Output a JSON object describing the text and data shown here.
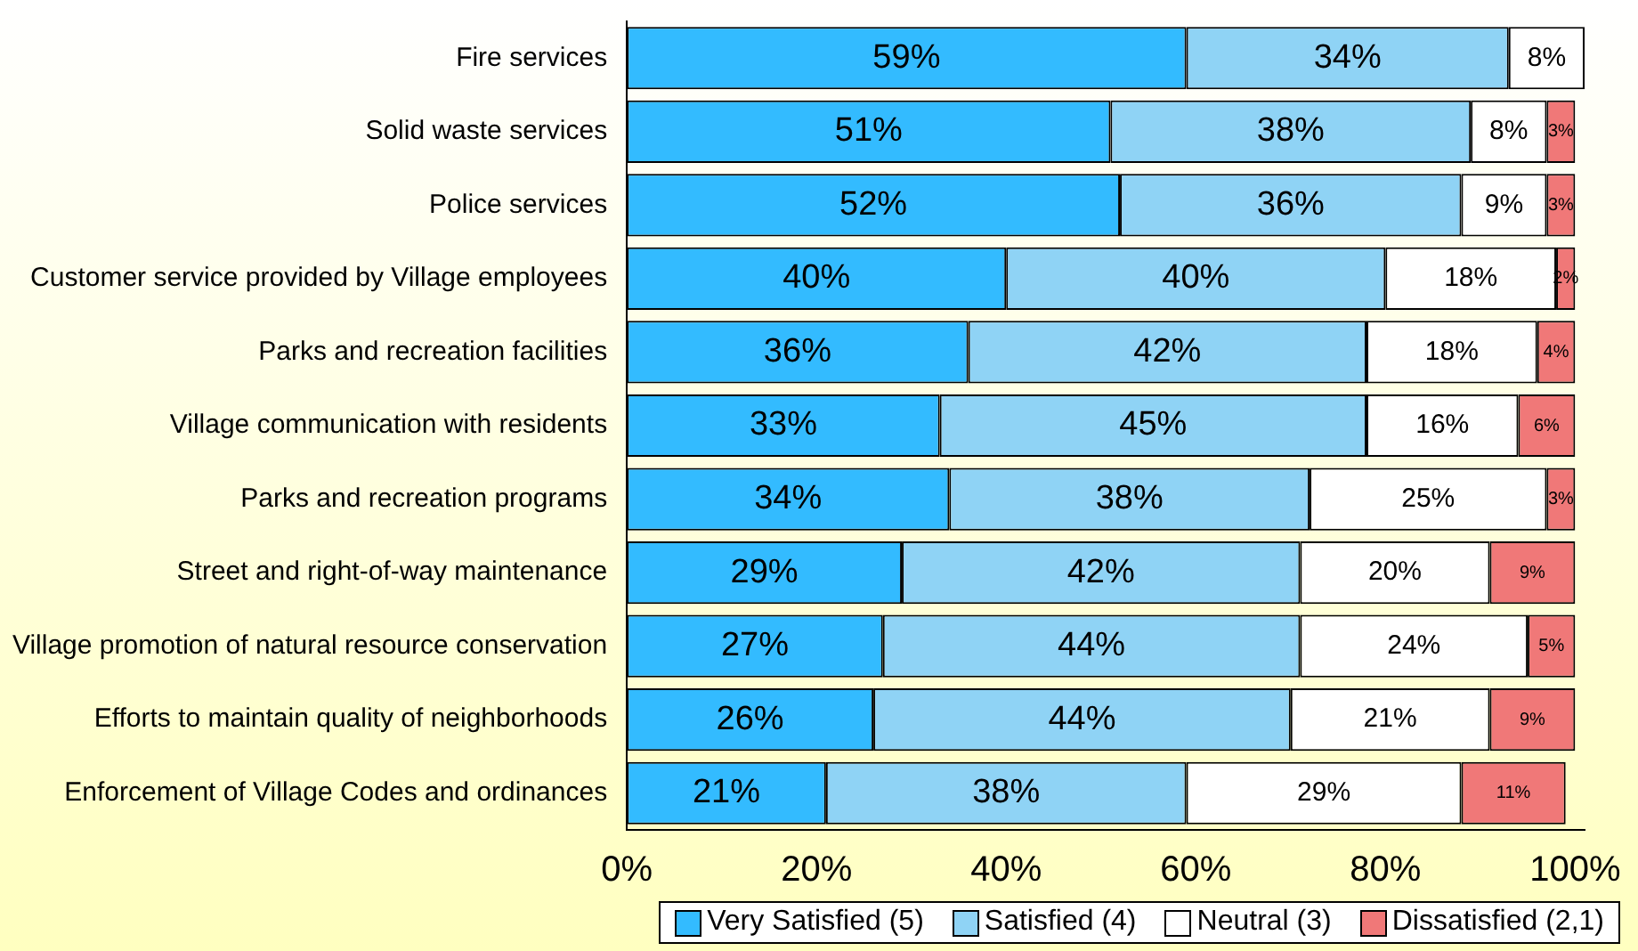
{
  "chart_data": {
    "type": "bar",
    "orientation": "horizontal",
    "stacked": true,
    "categories": [
      "Fire services",
      "Solid waste services",
      "Police services",
      "Customer service provided by Village employees",
      "Parks and recreation facilities",
      "Village communication with residents",
      "Parks and recreation programs",
      "Street and right-of-way maintenance",
      "Village promotion of natural resource conservation",
      "Efforts to maintain quality of neighborhoods",
      "Enforcement of Village Codes and ordinances"
    ],
    "series": [
      {
        "name": "Very Satisfied (5)",
        "color": "#33bbff",
        "values": [
          59,
          51,
          52,
          40,
          36,
          33,
          34,
          29,
          27,
          26,
          21
        ],
        "value_labels": [
          "59%",
          "51%",
          "52%",
          "40%",
          "36%",
          "33%",
          "34%",
          "29%",
          "27%",
          "26%",
          "21%"
        ]
      },
      {
        "name": "Satisfied (4)",
        "color": "#8fd3f5",
        "values": [
          34,
          38,
          36,
          40,
          42,
          45,
          38,
          42,
          44,
          44,
          38
        ],
        "value_labels": [
          "34%",
          "38%",
          "36%",
          "40%",
          "42%",
          "45%",
          "38%",
          "42%",
          "44%",
          "44%",
          "38%"
        ]
      },
      {
        "name": "Neutral (3)",
        "color": "#ffffff",
        "values": [
          8,
          8,
          9,
          18,
          18,
          16,
          25,
          20,
          24,
          21,
          29
        ],
        "value_labels": [
          "8%",
          "8%",
          "9%",
          "18%",
          "18%",
          "16%",
          "25%",
          "20%",
          "24%",
          "21%",
          "29%"
        ]
      },
      {
        "name": "Dissatisfied (2,1)",
        "color": "#f07878",
        "values": [
          null,
          3,
          3,
          2,
          4,
          6,
          3,
          9,
          5,
          9,
          11
        ],
        "value_labels": [
          null,
          "3%",
          "3%",
          "2%",
          "4%",
          "6%",
          "3%",
          "9%",
          "5%",
          "9%",
          "11%"
        ]
      }
    ],
    "xlim": [
      0,
      101
    ],
    "xticks": [
      {
        "value": 0,
        "label": "0%"
      },
      {
        "value": 20,
        "label": "20%"
      },
      {
        "value": 40,
        "label": "40%"
      },
      {
        "value": 60,
        "label": "60%"
      },
      {
        "value": 80,
        "label": "80%"
      },
      {
        "value": 100,
        "label": "100%"
      }
    ],
    "grid": false,
    "legend": "bottom right"
  }
}
